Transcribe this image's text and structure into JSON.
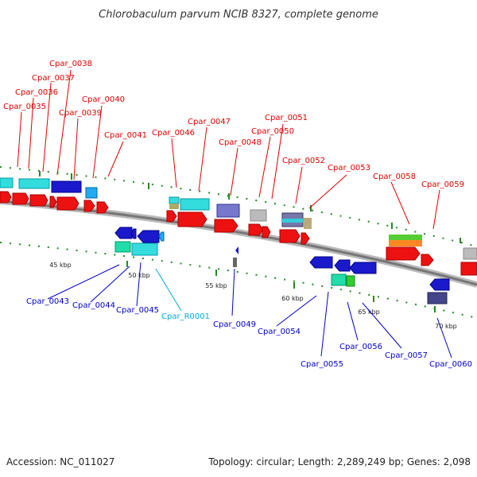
{
  "title": "Chlorobaculum parvum NCIB 8327, complete genome",
  "footer": {
    "accession": "Accession: NC_011027",
    "topology": "Topology: circular; Length: 2,289,249 bp; Genes: 2,098"
  },
  "colors": {
    "forward_label": "#e00000",
    "reverse_label": "#0000cc",
    "rna_label": "#00aadd",
    "backbone": "#888888"
  },
  "scale_labels": [
    "45 kbp",
    "50 kbp",
    "55 kbp",
    "60 kbp",
    "65 kbp",
    "70 kbp"
  ],
  "forward_genes": [
    "Cpar_0035",
    "Cpar_0036",
    "Cpar_0037",
    "Cpar_0038",
    "Cpar_0039",
    "Cpar_0040",
    "Cpar_0041",
    "Cpar_0046",
    "Cpar_0047",
    "Cpar_0048",
    "Cpar_0050",
    "Cpar_0051",
    "Cpar_0052",
    "Cpar_0053",
    "Cpar_0058",
    "Cpar_0059"
  ],
  "reverse_genes": [
    "Cpar_0043",
    "Cpar_0044",
    "Cpar_0045",
    "Cpar_R0001",
    "Cpar_0049",
    "Cpar_0054",
    "Cpar_0055",
    "Cpar_0056",
    "Cpar_0057",
    "Cpar_0060"
  ]
}
